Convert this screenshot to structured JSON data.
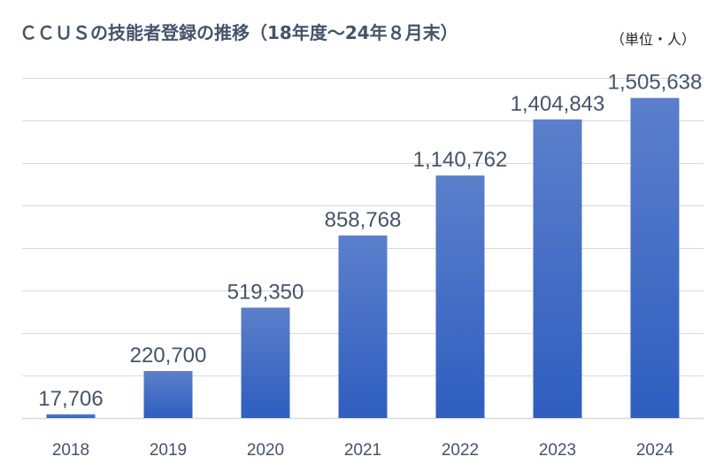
{
  "chart_data": {
    "type": "bar",
    "title": "ＣＣＵＳの技能者登録の推移（18年度～24年８月末）",
    "unit_label": "（単位・人）",
    "categories": [
      "2018",
      "2019",
      "2020",
      "2021",
      "2022",
      "2023",
      "2024"
    ],
    "values": [
      17706,
      220700,
      519350,
      858768,
      1140762,
      1404843,
      1505638
    ],
    "value_labels": [
      "17,706",
      "220,700",
      "519,350",
      "858,768",
      "1,140,762",
      "1,404,843",
      "1,505,638"
    ],
    "ylim": [
      0,
      1600000
    ],
    "grid": true,
    "bar_color_top": "#5b7fcb",
    "bar_color_bottom": "#2f5ebf"
  }
}
